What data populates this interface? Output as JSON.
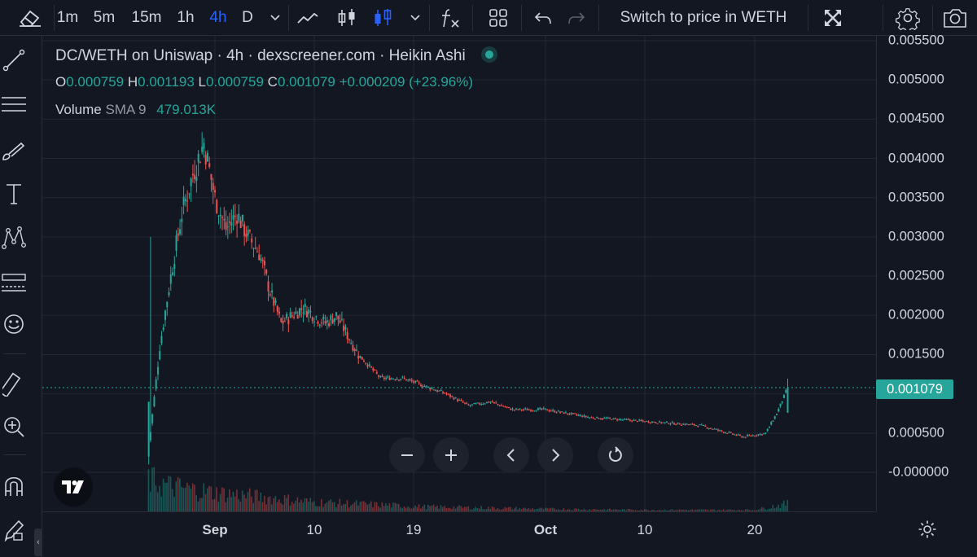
{
  "toolbar": {
    "intervals": [
      "1m",
      "5m",
      "15m",
      "1h",
      "4h",
      "D"
    ],
    "active_interval": "4h",
    "switch_label": "Switch to price in WETH"
  },
  "legend": {
    "title": "DC/WETH on Uniswap · 4h · dexscreener.com · Heikin Ashi",
    "o_key": "O",
    "o_val": "0.000759",
    "h_key": "H",
    "h_val": "0.001193",
    "l_key": "L",
    "l_val": "0.000759",
    "c_key": "C",
    "c_val": "0.001079",
    "change": "+0.000209 (+23.96%)",
    "volume_label": "Volume",
    "volume_sma": "SMA 9",
    "volume_val": "479.013K"
  },
  "price_tag": "0.001079",
  "colors": {
    "up": "#26a69a",
    "down": "#ef5350",
    "bg": "#131722",
    "grid": "#232733",
    "accent": "#2962ff"
  },
  "icons": {
    "top": [
      "eraser-icon",
      "chevron-down-icon",
      "line-chart-icon",
      "candles-icon",
      "hollow-candles-icon",
      "chevron-down-icon",
      "fx-icon",
      "layout-grid-icon",
      "undo-icon",
      "redo-icon",
      "fullscreen-icon",
      "gear-icon",
      "camera-icon"
    ],
    "left": [
      "trend-line-icon",
      "fib-icon",
      "brush-icon",
      "text-icon",
      "pattern-icon",
      "prediction-icon",
      "emoji-icon",
      "ruler-icon",
      "zoom-in-icon",
      "magnet-icon",
      "lock-pencil-icon"
    ]
  },
  "chart_data": {
    "type": "candlestick",
    "style": "Heikin Ashi",
    "pair": "DC/WETH",
    "exchange": "Uniswap",
    "interval": "4h",
    "y_ticks": [
      "0.005500",
      "0.005000",
      "0.004500",
      "0.004000",
      "0.003500",
      "0.003000",
      "0.002500",
      "0.002000",
      "0.001500",
      "0.001000",
      "0.000500",
      "-0.000000"
    ],
    "x_ticks": [
      "Sep",
      "10",
      "19",
      "Oct",
      "10",
      "20"
    ],
    "ylim": [
      -5e-05,
      0.0056
    ],
    "last_price": 0.001079,
    "grid": true,
    "approx_close_path": [
      {
        "date": "Aug 26",
        "close": 0.0003
      },
      {
        "date": "Aug 27",
        "close": 0.0016
      },
      {
        "date": "Aug 28",
        "close": 0.0025
      },
      {
        "date": "Aug 29",
        "close": 0.0033
      },
      {
        "date": "Aug 30",
        "close": 0.0038
      },
      {
        "date": "Aug 31",
        "close": 0.0042
      },
      {
        "date": "Sep 1",
        "close": 0.0035
      },
      {
        "date": "Sep 2",
        "close": 0.0031
      },
      {
        "date": "Sep 3",
        "close": 0.0033
      },
      {
        "date": "Sep 4",
        "close": 0.003
      },
      {
        "date": "Sep 5",
        "close": 0.0028
      },
      {
        "date": "Sep 6",
        "close": 0.0023
      },
      {
        "date": "Sep 7",
        "close": 0.0019
      },
      {
        "date": "Sep 9",
        "close": 0.0021
      },
      {
        "date": "Sep 11",
        "close": 0.0019
      },
      {
        "date": "Sep 12",
        "close": 0.002
      },
      {
        "date": "Sep 14",
        "close": 0.0015
      },
      {
        "date": "Sep 16",
        "close": 0.0012
      },
      {
        "date": "Sep 18",
        "close": 0.0012
      },
      {
        "date": "Sep 20",
        "close": 0.0011
      },
      {
        "date": "Sep 22",
        "close": 0.001
      },
      {
        "date": "Sep 24",
        "close": 0.00085
      },
      {
        "date": "Sep 26",
        "close": 0.0009
      },
      {
        "date": "Sep 28",
        "close": 0.0008
      },
      {
        "date": "Oct 1",
        "close": 0.0008
      },
      {
        "date": "Oct 5",
        "close": 0.0007
      },
      {
        "date": "Oct 10",
        "close": 0.00065
      },
      {
        "date": "Oct 15",
        "close": 0.0006
      },
      {
        "date": "Oct 19",
        "close": 0.00045
      },
      {
        "date": "Oct 21",
        "close": 0.0005
      },
      {
        "date": "Oct 22",
        "close": 0.00075
      },
      {
        "date": "Oct 23",
        "close": 0.001079
      }
    ],
    "approx_volume": [
      {
        "date": "Aug 26",
        "volume": 1.0
      },
      {
        "date": "Aug 28",
        "volume": 0.8
      },
      {
        "date": "Sep 1",
        "volume": 0.6
      },
      {
        "date": "Sep 10",
        "volume": 0.3
      },
      {
        "date": "Sep 20",
        "volume": 0.15
      },
      {
        "date": "Oct 1",
        "volume": 0.08
      },
      {
        "date": "Oct 10",
        "volume": 0.05
      },
      {
        "date": "Oct 20",
        "volume": 0.05
      },
      {
        "date": "Oct 23",
        "volume": 0.25
      }
    ]
  }
}
